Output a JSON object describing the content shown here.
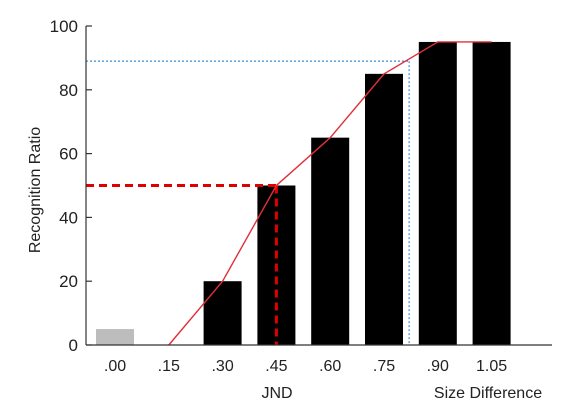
{
  "chart_data": {
    "type": "bar",
    "ylabel": "Recognition Ratio",
    "xlabel": "Size Difference",
    "annotation_label": "JND",
    "categories": [
      ".00",
      ".15",
      ".30",
      ".45",
      ".60",
      ".75",
      ".90",
      "1.05"
    ],
    "values": [
      5,
      0,
      20,
      50,
      65,
      85,
      95,
      95
    ],
    "bar_colors": [
      "#bdbdbd",
      "#000000",
      "#000000",
      "#000000",
      "#000000",
      "#000000",
      "#000000",
      "#000000"
    ],
    "ylim": [
      0,
      100
    ],
    "yticks": [
      0,
      20,
      40,
      60,
      80,
      100
    ],
    "fit_line": {
      "color": "#e0303a",
      "points": [
        [
          0.15,
          0
        ],
        [
          0.3,
          20
        ],
        [
          0.45,
          50
        ],
        [
          0.6,
          65
        ],
        [
          0.75,
          85
        ],
        [
          0.9,
          95
        ],
        [
          1.05,
          95
        ]
      ]
    },
    "jnd_marker": {
      "x": 0.45,
      "y": 50,
      "color": "#e00000"
    },
    "threshold_marker": {
      "x": 0.82,
      "y": 89,
      "color": "#3a8fd8"
    },
    "grid": false
  }
}
